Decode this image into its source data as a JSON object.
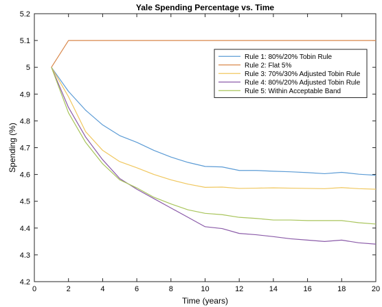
{
  "chart_data": {
    "type": "line",
    "title": "Yale Spending Percentage vs. Time",
    "xlabel": "Time (years)",
    "ylabel": "Spending (%)",
    "xlim": [
      0,
      20
    ],
    "ylim": [
      4.2,
      5.2
    ],
    "xticks": [
      0,
      2,
      4,
      6,
      8,
      10,
      12,
      14,
      16,
      18,
      20
    ],
    "yticks": [
      4.2,
      4.3,
      4.4,
      4.5,
      4.6,
      4.7,
      4.8,
      4.9,
      5,
      5.1,
      5.2
    ],
    "grid": false,
    "legend_position": "top-right",
    "x": [
      1,
      2,
      3,
      4,
      5,
      6,
      7,
      8,
      9,
      10,
      11,
      12,
      13,
      14,
      15,
      16,
      17,
      18,
      19,
      20
    ],
    "series": [
      {
        "name": "Rule 1: 80%/20% Tobin Rule",
        "color": "#5b9bd5",
        "values": [
          5.0,
          4.91,
          4.84,
          4.785,
          4.745,
          4.72,
          4.69,
          4.665,
          4.645,
          4.63,
          4.628,
          4.615,
          4.615,
          4.612,
          4.61,
          4.607,
          4.603,
          4.608,
          4.601,
          4.597
        ]
      },
      {
        "name": "Rule 2: Flat 5%",
        "color": "#d9874a",
        "values": [
          5.0,
          5.1,
          5.1,
          5.1,
          5.1,
          5.1,
          5.1,
          5.1,
          5.1,
          5.1,
          5.1,
          5.1,
          5.1,
          5.1,
          5.1,
          5.1,
          5.1,
          5.1,
          5.1,
          5.1
        ]
      },
      {
        "name": "Rule 3: 70%/30% Adjusted Tobin Rule",
        "color": "#f0c75e",
        "values": [
          5.0,
          4.89,
          4.76,
          4.69,
          4.648,
          4.625,
          4.6,
          4.58,
          4.564,
          4.552,
          4.553,
          4.548,
          4.549,
          4.55,
          4.549,
          4.548,
          4.547,
          4.551,
          4.547,
          4.545
        ]
      },
      {
        "name": "Rule 4: 80%/20% Adjusted Tobin Rule",
        "color": "#8a5aa8",
        "values": [
          5.0,
          4.85,
          4.74,
          4.655,
          4.585,
          4.545,
          4.51,
          4.475,
          4.44,
          4.405,
          4.398,
          4.38,
          4.375,
          4.368,
          4.36,
          4.355,
          4.35,
          4.355,
          4.345,
          4.34
        ]
      },
      {
        "name": "Rule 5: Within Acceptable Band",
        "color": "#a8c45a",
        "values": [
          5.0,
          4.83,
          4.72,
          4.64,
          4.58,
          4.55,
          4.515,
          4.49,
          4.468,
          4.455,
          4.45,
          4.44,
          4.436,
          4.43,
          4.43,
          4.428,
          4.428,
          4.428,
          4.42,
          4.415
        ]
      }
    ]
  }
}
